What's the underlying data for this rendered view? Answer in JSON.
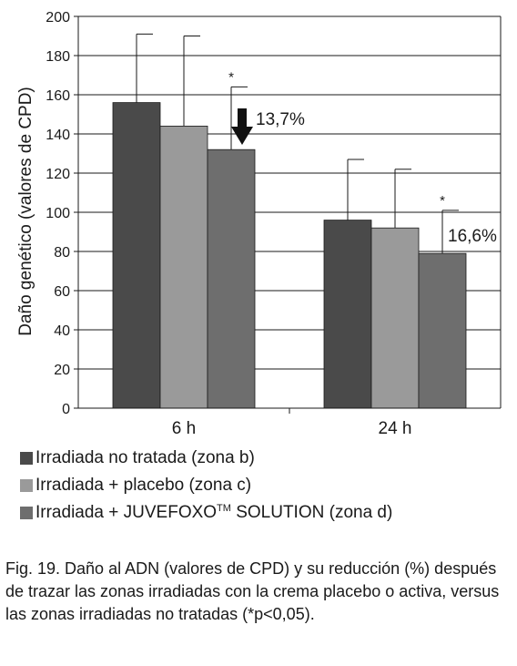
{
  "chart_data": {
    "type": "bar",
    "categories": [
      "6 h",
      "24 h"
    ],
    "ylabel": "Daño genético (valores de CPD)",
    "ylim": [
      0,
      200
    ],
    "yticks": [
      0,
      20,
      40,
      60,
      80,
      100,
      120,
      140,
      160,
      180,
      200
    ],
    "grid": true,
    "series": [
      {
        "name": "Irradiada no tratada (zona b)",
        "values": [
          156,
          96
        ],
        "error": [
          35,
          31
        ],
        "color": "#4a4a4a"
      },
      {
        "name": "Irradiada + placebo (zona c)",
        "values": [
          144,
          92
        ],
        "error": [
          46,
          30
        ],
        "color": "#9a9a9a"
      },
      {
        "name": "Irradiada + JUVEFOXO™ SOLUTION (zona d)",
        "values": [
          132,
          79
        ],
        "error": [
          32,
          22
        ],
        "color": "#6e6e6e",
        "significance": [
          "*",
          "*"
        ]
      }
    ],
    "annotations": [
      "13,7%",
      "16,6%"
    ],
    "legend_position": "bottom"
  },
  "legend": {
    "item1": "Irradiada no tratada (zona b)",
    "item2": "Irradiada + placebo (zona c)",
    "item3_prefix": "Irradiada + JUVEFOXO",
    "item3_sup": "TM",
    "item3_suffix": " SOLUTION (zona d)"
  },
  "caption": "Fig. 19. Daño al ADN (valores de CPD) y su reducción (%) después de trazar las zonas irradiadas con la crema placebo o activa, versus las zonas irradiadas no tratadas (*p<0,05)."
}
